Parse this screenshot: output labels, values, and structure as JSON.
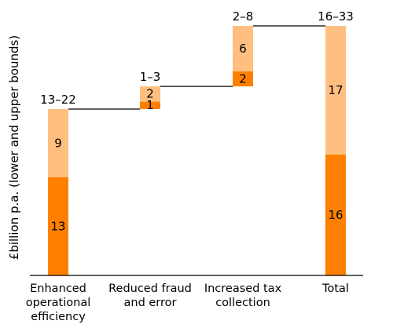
{
  "chart_data": {
    "type": "bar",
    "subtype": "stacked-waterfall",
    "title": "",
    "xlabel": "",
    "ylabel": "£billion p.a. (lower and upper bounds)",
    "categories": [
      [
        "Enhanced",
        "operational",
        "efficiency"
      ],
      [
        "Reduced fraud",
        "and error"
      ],
      [
        "Increased tax",
        "collection"
      ],
      [
        "Total"
      ]
    ],
    "range_labels": [
      "13–22",
      "1–3",
      "2–8",
      "16–33"
    ],
    "series": [
      {
        "name": "",
        "values": [
          13,
          1,
          2,
          16
        ]
      },
      {
        "name": "",
        "values": [
          9,
          2,
          6,
          17
        ]
      }
    ],
    "offsets": [
      0,
      22,
      25,
      0
    ],
    "ylim": [
      0,
      33
    ],
    "grid": false,
    "legend": false,
    "colors": {
      "lower": "#ff8000",
      "upper": "#ffbf80",
      "axis": "#000000",
      "connector": "#000000"
    }
  }
}
